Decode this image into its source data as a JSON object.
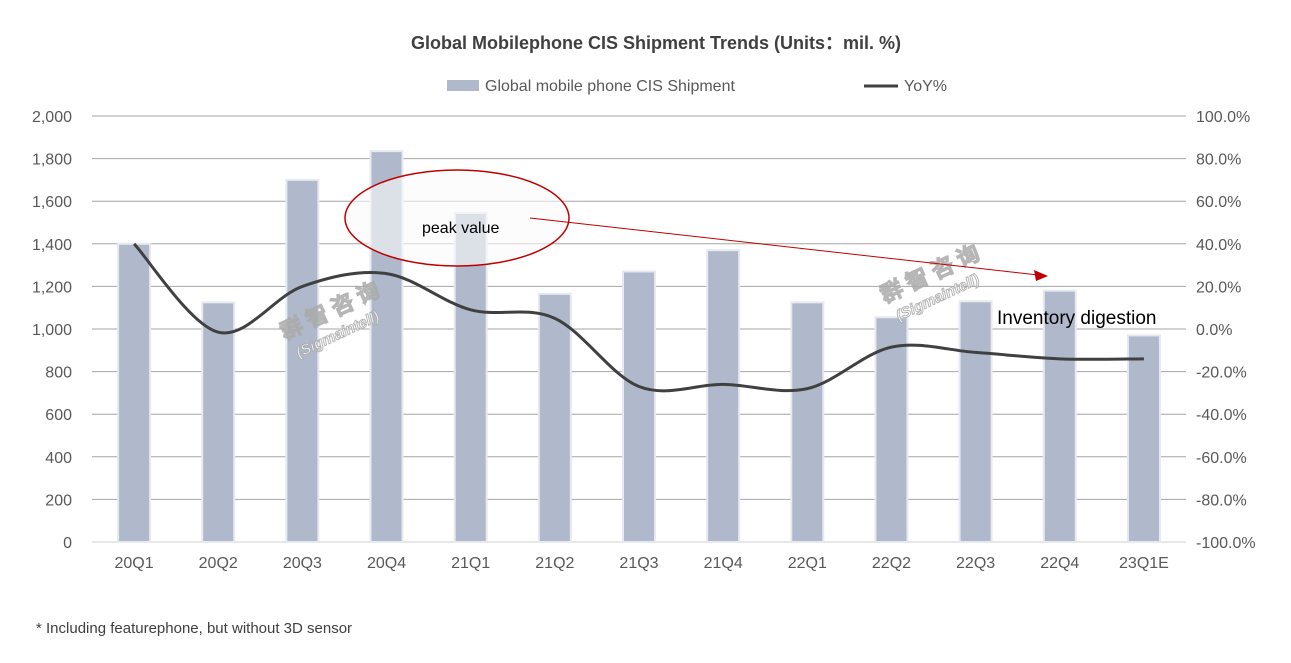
{
  "chart_data": {
    "type": "bar+line",
    "title": "Global Mobilephone CIS Shipment Trends (Units：mil. %)",
    "categories": [
      "20Q1",
      "20Q2",
      "20Q3",
      "20Q4",
      "21Q1",
      "21Q2",
      "21Q3",
      "21Q4",
      "22Q1",
      "22Q2",
      "22Q3",
      "22Q4",
      "23Q1E"
    ],
    "series": [
      {
        "name": "Global mobile phone CIS Shipment",
        "type": "bar",
        "axis": "left",
        "color": "#b0b9cb",
        "values": [
          1400,
          1125,
          1700,
          1835,
          1545,
          1165,
          1270,
          1370,
          1125,
          1055,
          1130,
          1180,
          970
        ]
      },
      {
        "name": "YoY%",
        "type": "line",
        "axis": "right",
        "color": "#404040",
        "values": [
          40,
          -1.5,
          20,
          26,
          9,
          5,
          -27,
          -26,
          -28,
          -8.5,
          -11,
          -14,
          -14
        ]
      }
    ],
    "yleft": {
      "lim": [
        0,
        2000
      ],
      "ticks": [
        "0",
        "200",
        "400",
        "600",
        "800",
        "1,000",
        "1,200",
        "1,400",
        "1,600",
        "1,800",
        "2,000"
      ]
    },
    "yright": {
      "lim": [
        -100,
        100
      ],
      "ticks": [
        "-100.0%",
        "-80.0%",
        "-60.0%",
        "-40.0%",
        "-20.0%",
        "0.0%",
        "20.0%",
        "40.0%",
        "60.0%",
        "80.0%",
        "100.0%"
      ]
    },
    "grid": true,
    "legend": "top",
    "annotations": {
      "peak": "peak value",
      "digestion": "Inventory digestion"
    },
    "footnote": "* Including featurephone, but without 3D sensor",
    "watermark": {
      "cn": "群智咨询",
      "en": "(Sigmaintell)"
    }
  }
}
